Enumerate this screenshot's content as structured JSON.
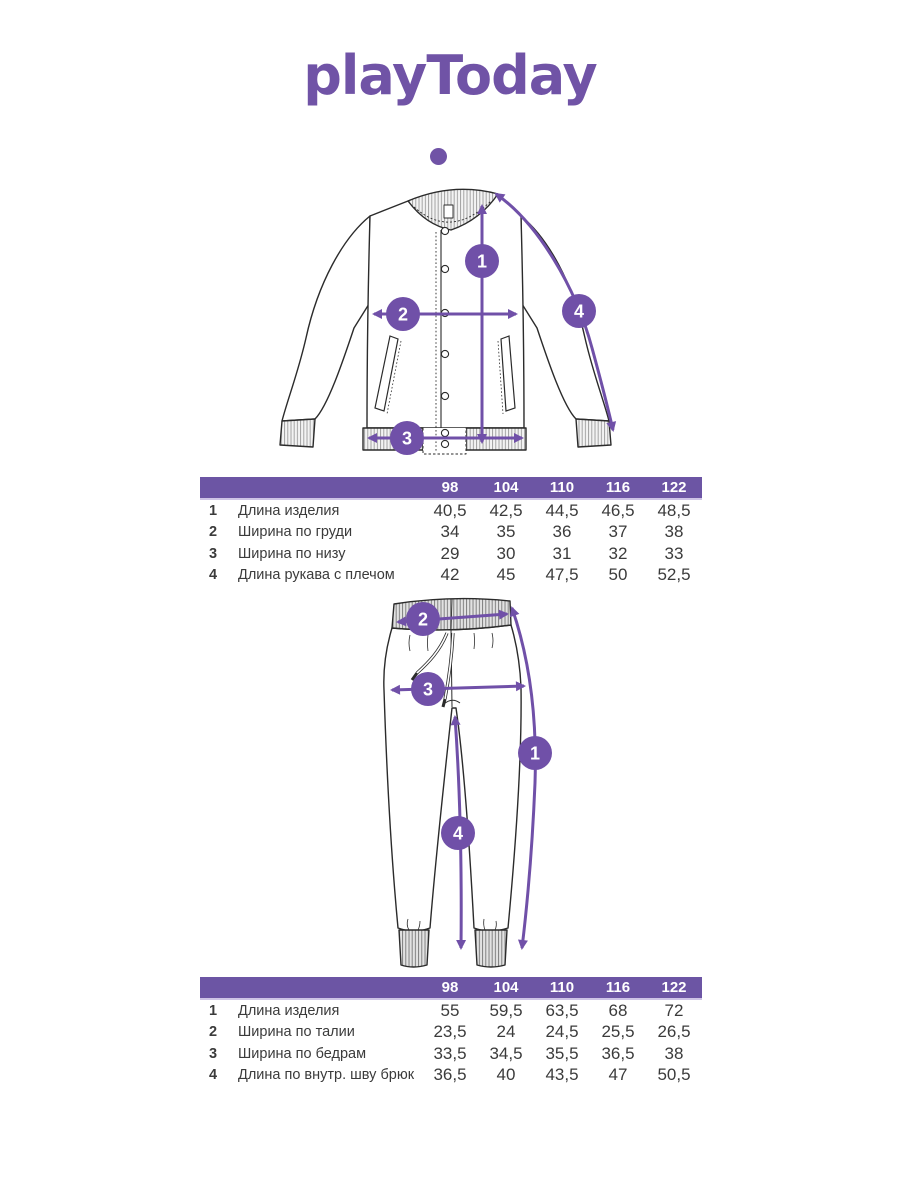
{
  "brand": {
    "logo_text": "playToday",
    "logo_color": "#7053a6"
  },
  "colors": {
    "accent_purple": "#7050a8",
    "table_header_bg": "#6c55a4",
    "table_text": "#3b3b3b"
  },
  "diagrams": [
    {
      "name": "jacket",
      "markers": [
        "1",
        "2",
        "3",
        "4"
      ]
    },
    {
      "name": "pants",
      "markers": [
        "1",
        "2",
        "3",
        "4"
      ]
    }
  ],
  "size_tables": [
    {
      "garment": "jacket",
      "sizes": [
        "98",
        "104",
        "110",
        "116",
        "122"
      ],
      "rows": [
        {
          "num": "1",
          "label": "Длина изделия",
          "values": [
            "40,5",
            "42,5",
            "44,5",
            "46,5",
            "48,5"
          ]
        },
        {
          "num": "2",
          "label": "Ширина по груди",
          "values": [
            "34",
            "35",
            "36",
            "37",
            "38"
          ]
        },
        {
          "num": "3",
          "label": "Ширина по низу",
          "values": [
            "29",
            "30",
            "31",
            "32",
            "33"
          ]
        },
        {
          "num": "4",
          "label": "Длина рукава с плечом",
          "values": [
            "42",
            "45",
            "47,5",
            "50",
            "52,5"
          ]
        }
      ]
    },
    {
      "garment": "pants",
      "sizes": [
        "98",
        "104",
        "110",
        "116",
        "122"
      ],
      "rows": [
        {
          "num": "1",
          "label": "Длина изделия",
          "values": [
            "55",
            "59,5",
            "63,5",
            "68",
            "72"
          ]
        },
        {
          "num": "2",
          "label": "Ширина по талии",
          "values": [
            "23,5",
            "24",
            "24,5",
            "25,5",
            "26,5"
          ]
        },
        {
          "num": "3",
          "label": "Ширина по бедрам",
          "values": [
            "33,5",
            "34,5",
            "35,5",
            "36,5",
            "38"
          ]
        },
        {
          "num": "4",
          "label": "Длина по внутр. шву брюк",
          "values": [
            "36,5",
            "40",
            "43,5",
            "47",
            "50,5"
          ]
        }
      ]
    }
  ]
}
